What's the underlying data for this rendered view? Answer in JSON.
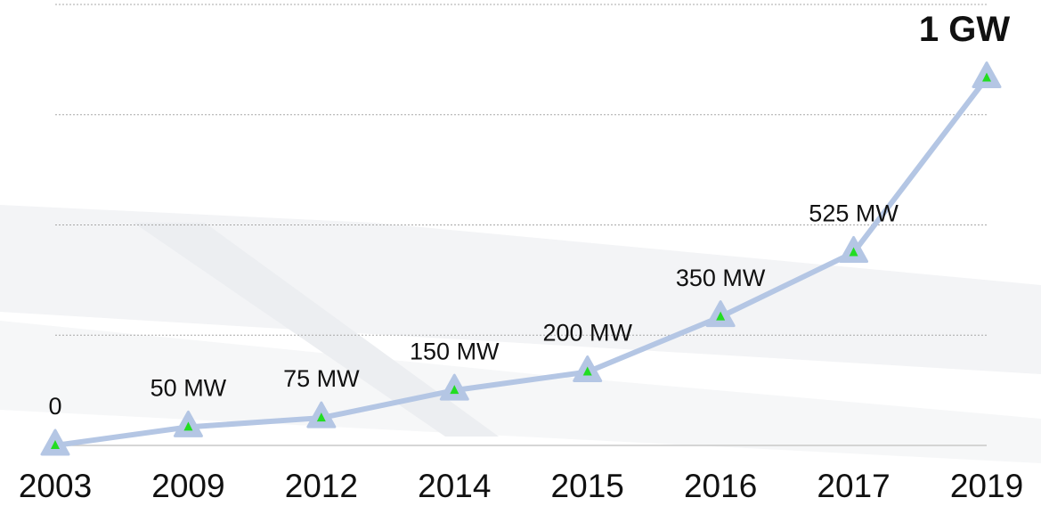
{
  "chart_data": {
    "type": "line",
    "categories": [
      "2003",
      "2009",
      "2012",
      "2014",
      "2015",
      "2016",
      "2017",
      "2019"
    ],
    "values": [
      0,
      50,
      75,
      150,
      200,
      350,
      525,
      1000
    ],
    "value_labels": [
      "0",
      "50 MW",
      "75 MW",
      "150 MW",
      "200 MW",
      "350 MW",
      "525 MW",
      "1 GW"
    ],
    "color": "#b4c6e4",
    "marker_color": "#22dd22",
    "ylim": [
      0,
      1200
    ],
    "yticks": [
      0,
      300,
      600,
      900,
      1200
    ],
    "grid": true
  }
}
